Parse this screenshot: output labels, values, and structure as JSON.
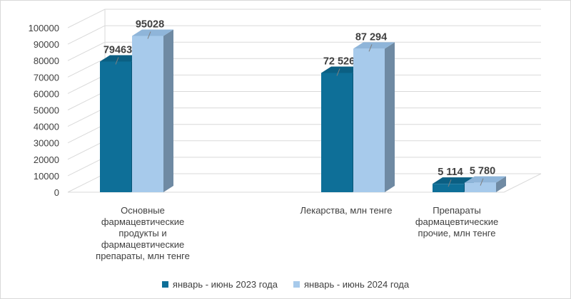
{
  "chart_data": {
    "type": "bar",
    "categories": [
      [
        "Основные",
        "фармацевтические",
        "продукты и",
        "фармацевтические",
        "препараты, млн тенге"
      ],
      [
        "Лекарства, млн тенге"
      ],
      [
        "Препараты",
        "фармацевтические",
        "прочие, млн тенге"
      ]
    ],
    "series": [
      {
        "name": "январь - июнь 2023 года",
        "values": [
          79463,
          72526,
          5114
        ],
        "labels": [
          "79463",
          "72 526",
          "5 114"
        ],
        "color": "#0e6f98"
      },
      {
        "name": "январь - июнь 2024 года",
        "values": [
          95028,
          87294,
          5780
        ],
        "labels": [
          "95028",
          "87 294",
          "5 780"
        ],
        "color": "#a7caeb"
      }
    ],
    "yticks": [
      "0",
      "10000",
      "20000",
      "30000",
      "40000",
      "50000",
      "60000",
      "70000",
      "80000",
      "90000",
      "100000"
    ],
    "ylim": [
      0,
      100000
    ],
    "bar_style": "3d",
    "grid": true,
    "legend_position": "bottom",
    "title": "",
    "xlabel": "",
    "ylabel": ""
  }
}
